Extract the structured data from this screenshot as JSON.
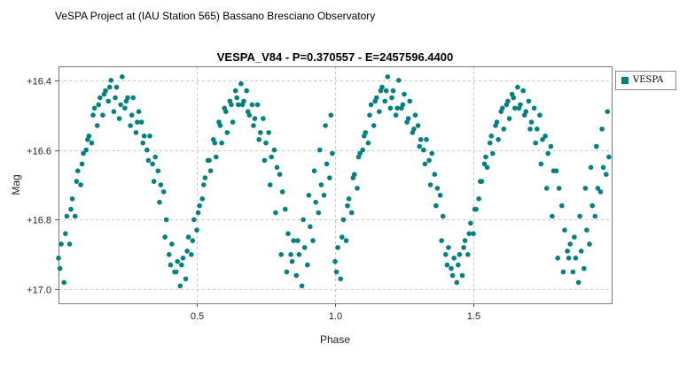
{
  "header": {
    "text": "VeSPA Project at (IAU Station 565) Bassano Bresciano Observatory"
  },
  "chart_data": {
    "type": "scatter",
    "title": "VESPA_V84  -  P=0.370557  -  E=2457596.4400",
    "xlabel": "Phase",
    "ylabel": "Mag",
    "xlim": [
      0.0,
      2.0
    ],
    "ylim": [
      17.04,
      16.36
    ],
    "y_inverted": true,
    "grid": true,
    "legend_position": "top-right-outside",
    "x_ticks": [
      0.5,
      1.0,
      1.5
    ],
    "x_tick_labels": [
      "0.5",
      "1.0",
      "1.5"
    ],
    "y_ticks": [
      16.4,
      16.6,
      16.8,
      17.0
    ],
    "y_tick_labels": [
      "+16.4",
      "+16.6",
      "+16.8",
      "+17.0"
    ],
    "series": [
      {
        "name": "VESPA",
        "color": "#008080",
        "x": [
          0.0,
          0.01,
          0.02,
          0.03,
          0.04,
          0.05,
          0.06,
          0.07,
          0.08,
          0.09,
          0.1,
          0.11,
          0.12,
          0.13,
          0.14,
          0.15,
          0.16,
          0.17,
          0.18,
          0.19,
          0.2,
          0.21,
          0.22,
          0.23,
          0.24,
          0.25,
          0.26,
          0.27,
          0.28,
          0.29,
          0.3,
          0.31,
          0.32,
          0.33,
          0.34,
          0.35,
          0.36,
          0.37,
          0.38,
          0.39,
          0.4,
          0.41,
          0.42,
          0.43,
          0.44,
          0.45,
          0.46,
          0.47,
          0.48,
          0.49,
          0.5,
          0.51,
          0.52,
          0.53,
          0.54,
          0.55,
          0.56,
          0.57,
          0.58,
          0.59,
          0.6,
          0.61,
          0.62,
          0.63,
          0.64,
          0.65,
          0.66,
          0.67,
          0.68,
          0.69,
          0.7,
          0.71,
          0.72,
          0.73,
          0.74,
          0.75,
          0.76,
          0.77,
          0.78,
          0.79,
          0.8,
          0.81,
          0.82,
          0.83,
          0.84,
          0.85,
          0.86,
          0.87,
          0.88,
          0.89,
          0.9,
          0.91,
          0.92,
          0.93,
          0.94,
          0.95,
          0.96,
          0.97,
          0.98,
          0.99,
          1.0,
          1.01,
          1.02,
          1.03,
          1.04,
          1.05,
          1.06,
          1.07,
          1.08,
          1.09,
          1.1,
          1.11,
          1.12,
          1.13,
          1.14,
          1.15,
          1.16,
          1.17,
          1.18,
          1.19,
          1.2,
          1.21,
          1.22,
          1.23,
          1.24,
          1.25,
          1.26,
          1.27,
          1.28,
          1.29,
          1.3,
          1.31,
          1.32,
          1.33,
          1.34,
          1.35,
          1.36,
          1.37,
          1.38,
          1.39,
          1.4,
          1.41,
          1.42,
          1.43,
          1.44,
          1.45,
          1.46,
          1.47,
          1.48,
          1.49,
          1.5,
          1.51,
          1.52,
          1.53,
          1.54,
          1.55,
          1.56,
          1.57,
          1.58,
          1.59,
          1.6,
          1.61,
          1.62,
          1.63,
          1.64,
          1.65,
          1.66,
          1.67,
          1.68,
          1.69,
          1.7,
          1.71,
          1.72,
          1.73,
          1.74,
          1.75,
          1.76,
          1.77,
          1.78,
          1.79,
          1.8,
          1.81,
          1.82,
          1.83,
          1.84,
          1.85,
          1.86,
          1.87,
          1.88,
          1.89,
          1.9,
          1.91,
          1.92,
          1.93,
          1.94,
          1.95,
          1.96,
          1.97,
          1.98,
          1.99,
          0.005,
          0.025,
          0.045,
          0.065,
          0.085,
          0.105,
          0.125,
          0.145,
          0.165,
          0.185,
          0.205,
          0.225,
          0.245,
          0.265,
          0.285,
          0.305,
          0.325,
          0.345,
          0.365,
          0.385,
          0.405,
          0.425,
          0.445,
          0.465,
          0.485,
          0.505,
          0.525,
          0.545,
          0.565,
          0.585,
          0.605,
          0.625,
          0.645,
          0.665,
          0.685,
          0.705,
          0.725,
          0.745,
          0.765,
          0.785,
          0.805,
          0.825,
          0.845,
          0.865,
          0.885,
          0.905,
          0.925,
          0.945,
          0.965,
          0.985,
          1.005,
          1.025,
          1.045,
          1.065,
          1.085,
          1.105,
          1.125,
          1.145,
          1.165,
          1.185,
          1.205,
          1.225,
          1.245,
          1.265,
          1.285,
          1.305,
          1.325,
          1.345,
          1.365,
          1.385,
          1.405,
          1.425,
          1.445,
          1.465,
          1.485,
          1.505,
          1.525,
          1.545,
          1.565,
          1.585,
          1.605,
          1.625,
          1.645,
          1.665,
          1.685,
          1.705,
          1.725,
          1.745,
          1.765,
          1.785,
          1.805,
          1.825,
          1.845,
          1.865,
          1.885,
          1.905,
          1.925,
          1.945,
          1.965,
          1.985
        ],
        "y": [
          16.91,
          16.87,
          16.98,
          16.79,
          16.87,
          16.74,
          16.79,
          16.66,
          16.7,
          16.61,
          16.6,
          16.56,
          16.58,
          16.48,
          16.53,
          16.45,
          16.5,
          16.43,
          16.46,
          16.4,
          16.49,
          16.42,
          16.51,
          16.39,
          16.48,
          16.45,
          16.53,
          16.45,
          16.55,
          16.49,
          16.52,
          16.56,
          16.6,
          16.56,
          16.64,
          16.62,
          16.66,
          16.7,
          16.72,
          16.8,
          16.9,
          16.87,
          16.95,
          16.92,
          16.99,
          16.91,
          16.97,
          16.85,
          16.9,
          16.8,
          16.83,
          16.76,
          16.74,
          16.68,
          16.63,
          16.66,
          16.57,
          16.62,
          16.52,
          16.58,
          16.48,
          16.55,
          16.46,
          16.52,
          16.43,
          16.47,
          16.41,
          16.46,
          16.43,
          16.5,
          16.47,
          16.51,
          16.47,
          16.55,
          16.51,
          16.58,
          16.55,
          16.62,
          16.6,
          16.65,
          16.67,
          16.72,
          16.77,
          16.84,
          16.9,
          16.86,
          16.96,
          16.9,
          16.99,
          16.88,
          16.93,
          16.82,
          16.86,
          16.75,
          16.78,
          16.7,
          16.73,
          16.64,
          16.68,
          16.61,
          16.92,
          16.88,
          16.97,
          16.8,
          16.86,
          16.74,
          16.78,
          16.67,
          16.71,
          16.61,
          16.6,
          16.55,
          16.58,
          16.47,
          16.53,
          16.45,
          16.49,
          16.42,
          16.46,
          16.39,
          16.48,
          16.43,
          16.5,
          16.4,
          16.48,
          16.44,
          16.52,
          16.46,
          16.55,
          16.5,
          16.53,
          16.57,
          16.6,
          16.57,
          16.63,
          16.61,
          16.67,
          16.71,
          16.73,
          16.79,
          16.9,
          16.88,
          16.94,
          16.91,
          16.98,
          16.9,
          16.96,
          16.86,
          16.9,
          16.81,
          16.84,
          16.77,
          16.74,
          16.69,
          16.64,
          16.65,
          16.58,
          16.61,
          16.53,
          16.57,
          16.49,
          16.54,
          16.47,
          16.51,
          16.44,
          16.48,
          16.42,
          16.47,
          16.43,
          16.49,
          16.46,
          16.52,
          16.48,
          16.54,
          16.5,
          16.57,
          16.56,
          16.61,
          16.59,
          16.66,
          16.66,
          16.71,
          16.76,
          16.83,
          16.89,
          16.87,
          16.95,
          16.91,
          16.98,
          16.89,
          16.94,
          16.83,
          16.87,
          16.76,
          16.79,
          16.71,
          16.72,
          16.65,
          16.67,
          16.62,
          16.94,
          16.84,
          16.77,
          16.69,
          16.64,
          16.57,
          16.5,
          16.47,
          16.44,
          16.42,
          16.45,
          16.47,
          16.46,
          16.5,
          16.52,
          16.58,
          16.63,
          16.69,
          16.75,
          16.85,
          16.93,
          16.95,
          16.93,
          16.89,
          16.86,
          16.78,
          16.7,
          16.63,
          16.58,
          16.53,
          16.49,
          16.47,
          16.45,
          16.47,
          16.49,
          16.53,
          16.57,
          16.63,
          16.7,
          16.78,
          16.9,
          16.95,
          16.92,
          16.86,
          16.8,
          16.73,
          16.66,
          16.6,
          16.53,
          16.5,
          16.95,
          16.85,
          16.76,
          16.68,
          16.62,
          16.56,
          16.5,
          16.46,
          16.43,
          16.43,
          16.45,
          16.48,
          16.47,
          16.51,
          16.54,
          16.59,
          16.64,
          16.7,
          16.76,
          16.86,
          16.93,
          16.96,
          16.93,
          16.88,
          16.84,
          16.77,
          16.69,
          16.62,
          16.56,
          16.52,
          16.48,
          16.46,
          16.45,
          16.48,
          16.5,
          16.54,
          16.58,
          16.64,
          16.71,
          16.79,
          16.91,
          16.95,
          16.91,
          16.85,
          16.79,
          16.71,
          16.65,
          16.59,
          16.54,
          16.49
        ]
      }
    ]
  }
}
